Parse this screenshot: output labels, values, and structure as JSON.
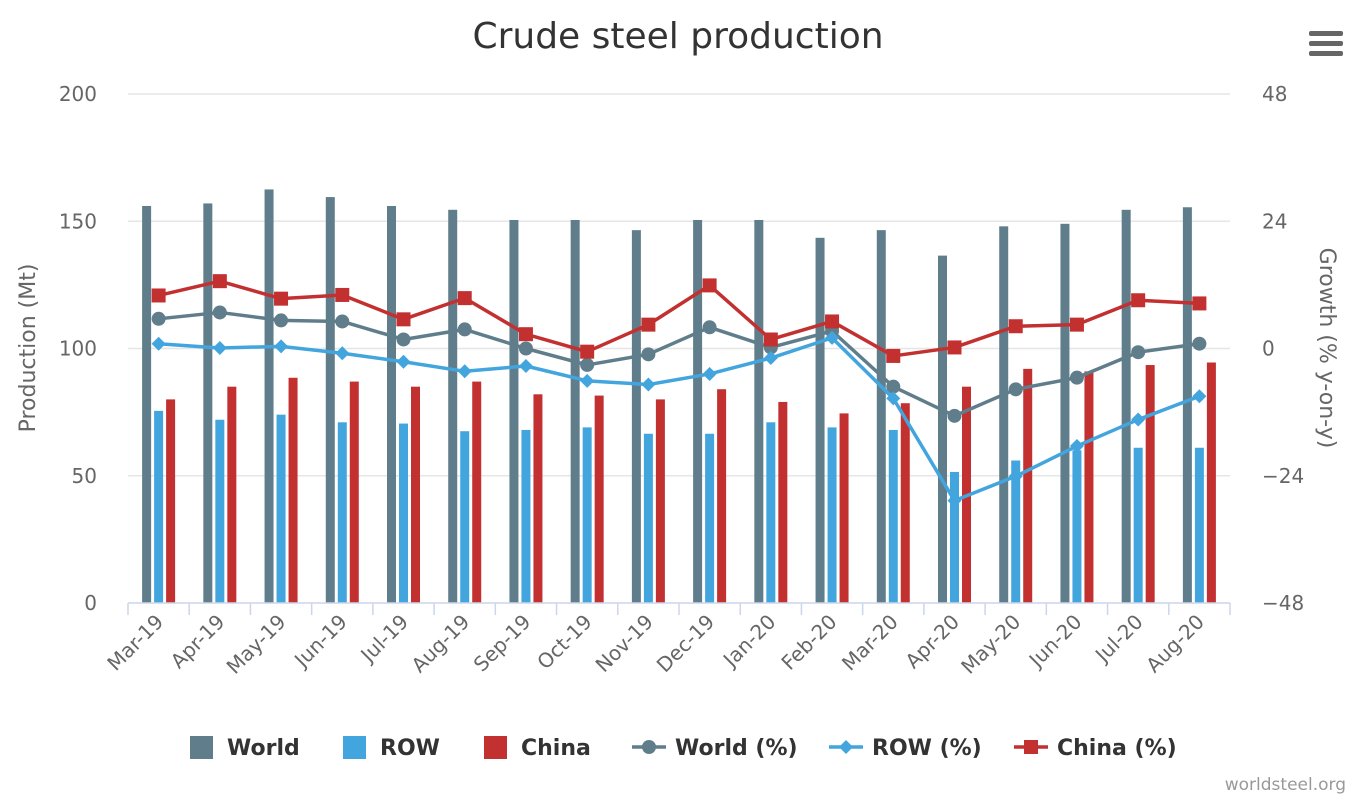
{
  "chart_data": {
    "type": "bar",
    "title": "Crude steel production",
    "credits": "worldsteel.org",
    "categories": [
      "Mar-19",
      "Apr-19",
      "May-19",
      "Jun-19",
      "Jul-19",
      "Aug-19",
      "Sep-19",
      "Oct-19",
      "Nov-19",
      "Dec-19",
      "Jan-20",
      "Feb-20",
      "Mar-20",
      "Apr-20",
      "May-20",
      "Jun-20",
      "Jul-20",
      "Aug-20"
    ],
    "y_left": {
      "label": "Production (Mt)",
      "range": [
        0,
        200
      ],
      "ticks": [
        "0",
        "50",
        "100",
        "150",
        "200"
      ]
    },
    "y_right": {
      "label": "Growth (% y-on-y)",
      "range": [
        -48,
        48
      ],
      "ticks": [
        "−48",
        "−24",
        "0",
        "24",
        "48"
      ]
    },
    "grid": true,
    "legend_position": "bottom-center",
    "series": [
      {
        "name": "World",
        "type": "column",
        "axis": "left",
        "color": "#607D8B",
        "values": [
          156,
          157,
          162.5,
          159.5,
          156,
          154.5,
          150.5,
          150.5,
          146.5,
          150.5,
          150.5,
          143.5,
          146.5,
          136.5,
          148,
          149,
          154.5,
          155.5
        ]
      },
      {
        "name": "ROW",
        "type": "column",
        "axis": "left",
        "color": "#42A5DE",
        "values": [
          75.5,
          72,
          74,
          71,
          70.5,
          67.5,
          68,
          69,
          66.5,
          66.5,
          71,
          69,
          68,
          51.5,
          56,
          60,
          61,
          61
        ]
      },
      {
        "name": "China",
        "type": "column",
        "axis": "left",
        "color": "#C23030",
        "values": [
          80,
          85,
          88.5,
          87,
          85,
          87,
          82,
          81.5,
          80,
          84,
          79,
          74.5,
          78.5,
          85,
          92,
          91,
          93.5,
          94.5
        ]
      },
      {
        "name": "World (%)",
        "type": "line",
        "axis": "right",
        "color": "#607D8B",
        "marker": "circle",
        "values": [
          5.6,
          6.8,
          5.3,
          5.1,
          1.7,
          3.6,
          0,
          -3.1,
          -1.1,
          4,
          0.2,
          3.3,
          -7.2,
          -12.7,
          -7.7,
          -5.5,
          -0.7,
          0.9
        ]
      },
      {
        "name": "ROW (%)",
        "type": "line",
        "axis": "right",
        "color": "#42A5DE",
        "marker": "diamond",
        "values": [
          0.9,
          0.1,
          0.4,
          -0.9,
          -2.5,
          -4.3,
          -3.3,
          -6.1,
          -6.8,
          -4.8,
          -1.8,
          2,
          -9.4,
          -28.7,
          -24.1,
          -18.4,
          -13.4,
          -9
        ]
      },
      {
        "name": "China (%)",
        "type": "line",
        "axis": "right",
        "color": "#C23030",
        "marker": "square",
        "values": [
          10,
          12.7,
          9.4,
          10.1,
          5.5,
          9.5,
          2.7,
          -0.6,
          4.5,
          11.9,
          1.7,
          5.1,
          -1.4,
          0.2,
          4.2,
          4.5,
          9.1,
          8.5
        ]
      }
    ]
  }
}
